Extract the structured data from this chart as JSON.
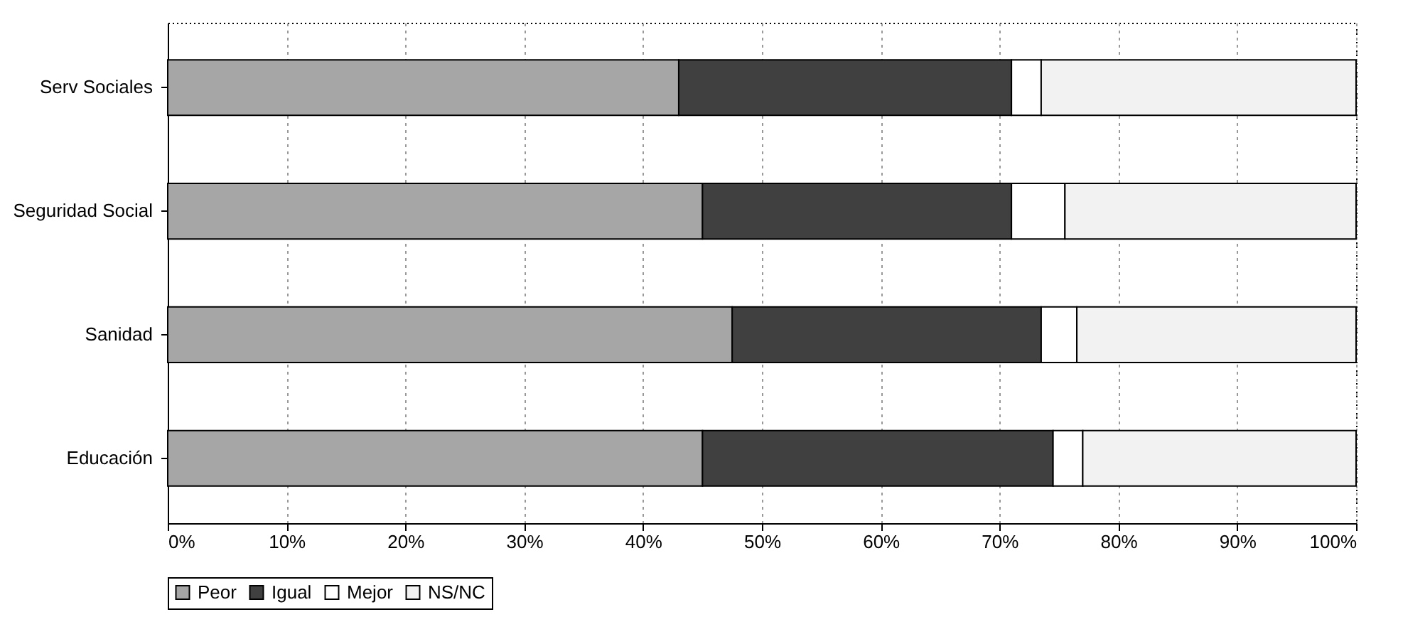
{
  "chart_data": {
    "type": "bar",
    "orientation": "horizontal",
    "stacked": true,
    "categories": [
      "Serv Sociales",
      "Seguridad Social",
      "Sanidad",
      "Educación"
    ],
    "series": [
      {
        "name": "Peor",
        "color": "#a6a6a6",
        "values": [
          43,
          45,
          47.5,
          45
        ]
      },
      {
        "name": "Igual",
        "color": "#404040",
        "values": [
          28,
          26,
          26,
          29.5
        ]
      },
      {
        "name": "Mejor",
        "color": "#ffffff",
        "values": [
          2.5,
          4.5,
          3,
          2.5
        ]
      },
      {
        "name": "NS/NC",
        "color": "#f2f2f2",
        "values": [
          26.5,
          24.5,
          23.5,
          23
        ]
      }
    ],
    "xlim": [
      0,
      100
    ],
    "xticks": [
      {
        "value": 0,
        "label": "0%"
      },
      {
        "value": 10,
        "label": "10%"
      },
      {
        "value": 20,
        "label": "20%"
      },
      {
        "value": 30,
        "label": "30%"
      },
      {
        "value": 40,
        "label": "40%"
      },
      {
        "value": 50,
        "label": "50%"
      },
      {
        "value": 60,
        "label": "60%"
      },
      {
        "value": 70,
        "label": "70%"
      },
      {
        "value": 80,
        "label": "80%"
      },
      {
        "value": 90,
        "label": "90%"
      },
      {
        "value": 100,
        "label": "100%"
      }
    ],
    "grid": "x",
    "legend": "bottom"
  }
}
